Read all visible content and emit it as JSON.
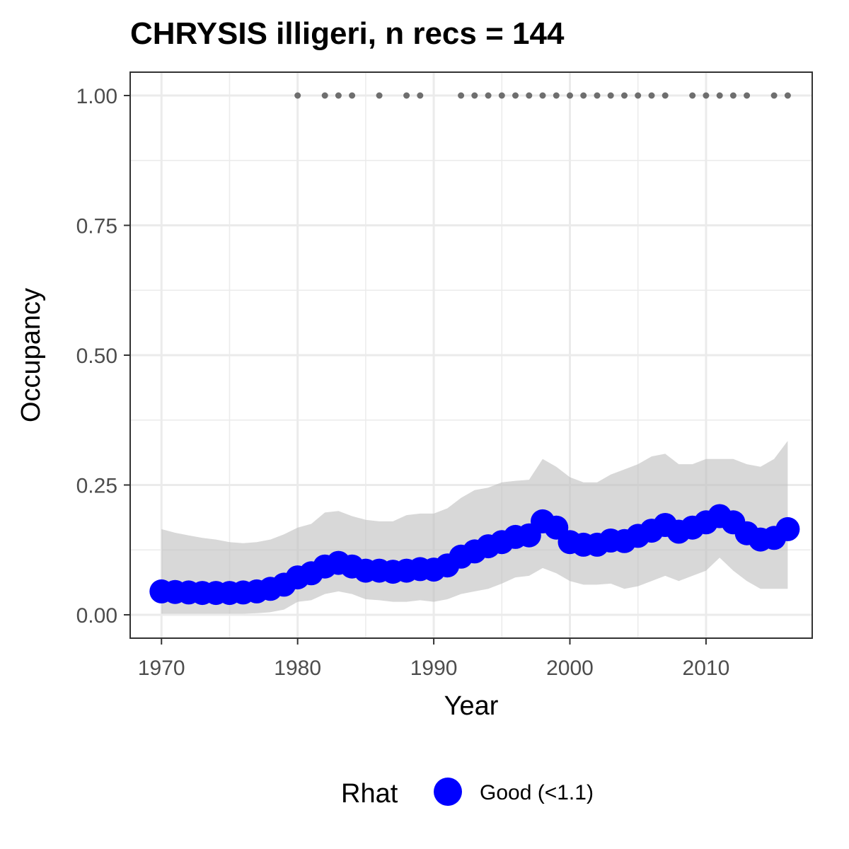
{
  "chart_data": {
    "type": "line",
    "title": "CHRYSIS illigeri, n recs = 144",
    "xlabel": "Year",
    "ylabel": "Occupancy",
    "xlim": [
      1967.7,
      2017.8
    ],
    "ylim": [
      -0.045,
      1.045
    ],
    "x_ticks": [
      1970,
      1980,
      1990,
      2000,
      2010
    ],
    "x_tick_labels": [
      "1970",
      "1980",
      "1990",
      "2000",
      "2010"
    ],
    "y_ticks": [
      0,
      0.25,
      0.5,
      0.75,
      1.0
    ],
    "y_tick_labels": [
      "0.00",
      "0.25",
      "0.50",
      "0.75",
      "1.00"
    ],
    "grid": true,
    "legend": {
      "position": "bottom",
      "title": "Rhat",
      "entries": [
        {
          "label": "Good (<1.1)",
          "color": "#0000ff"
        }
      ]
    },
    "colors": {
      "points": "#0000ff",
      "ribbon": "#bebebe",
      "records": "#6e6e6e",
      "grid": "#ebebeb",
      "panel_border": "#333333"
    },
    "x": [
      1970,
      1971,
      1972,
      1973,
      1974,
      1975,
      1976,
      1977,
      1978,
      1979,
      1980,
      1981,
      1982,
      1983,
      1984,
      1985,
      1986,
      1987,
      1988,
      1989,
      1990,
      1991,
      1992,
      1993,
      1994,
      1995,
      1996,
      1997,
      1998,
      1999,
      2000,
      2001,
      2002,
      2003,
      2004,
      2005,
      2006,
      2007,
      2008,
      2009,
      2010,
      2011,
      2012,
      2013,
      2014,
      2015,
      2016
    ],
    "series": [
      {
        "name": "Good (<1.1)",
        "values": [
          0.045,
          0.044,
          0.043,
          0.042,
          0.042,
          0.042,
          0.043,
          0.045,
          0.05,
          0.058,
          0.072,
          0.08,
          0.093,
          0.1,
          0.093,
          0.085,
          0.085,
          0.083,
          0.085,
          0.088,
          0.087,
          0.095,
          0.112,
          0.122,
          0.132,
          0.14,
          0.15,
          0.153,
          0.18,
          0.168,
          0.14,
          0.135,
          0.135,
          0.143,
          0.142,
          0.152,
          0.162,
          0.173,
          0.16,
          0.168,
          0.178,
          0.19,
          0.178,
          0.157,
          0.145,
          0.148,
          0.165
        ],
        "lower": [
          0.002,
          0.002,
          0.002,
          0.002,
          0.002,
          0.002,
          0.002,
          0.003,
          0.005,
          0.01,
          0.025,
          0.028,
          0.04,
          0.045,
          0.04,
          0.03,
          0.028,
          0.025,
          0.025,
          0.028,
          0.025,
          0.03,
          0.04,
          0.045,
          0.05,
          0.06,
          0.072,
          0.075,
          0.09,
          0.08,
          0.065,
          0.058,
          0.058,
          0.06,
          0.05,
          0.055,
          0.065,
          0.075,
          0.065,
          0.075,
          0.085,
          0.11,
          0.085,
          0.065,
          0.05,
          0.05,
          0.05
        ],
        "upper": [
          0.165,
          0.158,
          0.153,
          0.148,
          0.145,
          0.14,
          0.138,
          0.14,
          0.145,
          0.155,
          0.168,
          0.175,
          0.197,
          0.2,
          0.19,
          0.183,
          0.18,
          0.18,
          0.192,
          0.195,
          0.195,
          0.205,
          0.225,
          0.24,
          0.245,
          0.255,
          0.258,
          0.26,
          0.3,
          0.285,
          0.265,
          0.255,
          0.255,
          0.27,
          0.28,
          0.29,
          0.305,
          0.31,
          0.29,
          0.29,
          0.3,
          0.3,
          0.3,
          0.29,
          0.285,
          0.3,
          0.335
        ]
      }
    ],
    "records": {
      "y": 1.0,
      "years": [
        1980,
        1982,
        1983,
        1984,
        1986,
        1988,
        1989,
        1992,
        1993,
        1994,
        1995,
        1996,
        1997,
        1998,
        1999,
        2000,
        2001,
        2002,
        2003,
        2004,
        2005,
        2006,
        2007,
        2009,
        2010,
        2011,
        2012,
        2013,
        2015,
        2016
      ]
    }
  }
}
